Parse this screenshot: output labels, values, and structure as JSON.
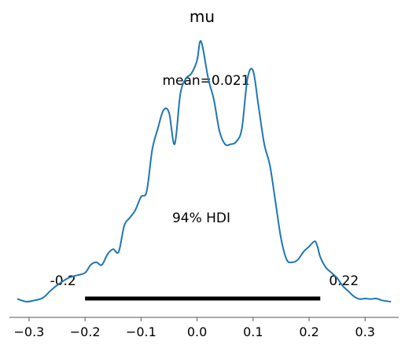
{
  "chart_data": {
    "type": "line",
    "title": "mu",
    "xlabel": "",
    "ylabel": "",
    "xlim": [
      -0.335,
      0.36
    ],
    "ylim": [
      0,
      1
    ],
    "grid": false,
    "x_ticks": [
      -0.3,
      -0.2,
      -0.1,
      0.0,
      0.1,
      0.2,
      0.3
    ],
    "x_tick_labels": [
      "−0.3",
      "−0.2",
      "−0.1",
      "0.0",
      "0.1",
      "0.2",
      "0.3"
    ],
    "series": [
      {
        "color": "#1f77b4",
        "x": [
          -0.32,
          -0.305,
          -0.29,
          -0.275,
          -0.26,
          -0.245,
          -0.23,
          -0.215,
          -0.2,
          -0.19,
          -0.18,
          -0.17,
          -0.16,
          -0.15,
          -0.14,
          -0.13,
          -0.12,
          -0.11,
          -0.1,
          -0.09,
          -0.08,
          -0.07,
          -0.06,
          -0.05,
          -0.04,
          -0.03,
          -0.02,
          -0.01,
          0.0,
          0.005,
          0.01,
          0.02,
          0.03,
          0.04,
          0.05,
          0.06,
          0.07,
          0.08,
          0.09,
          0.1,
          0.11,
          0.12,
          0.13,
          0.14,
          0.15,
          0.16,
          0.17,
          0.18,
          0.19,
          0.2,
          0.21,
          0.215,
          0.22,
          0.23,
          0.24,
          0.25,
          0.26,
          0.27,
          0.28,
          0.29,
          0.3,
          0.31,
          0.32,
          0.33,
          0.345
        ],
        "y": [
          0.01,
          0.0,
          0.005,
          0.015,
          0.045,
          0.07,
          0.09,
          0.1,
          0.11,
          0.14,
          0.15,
          0.14,
          0.18,
          0.2,
          0.19,
          0.29,
          0.32,
          0.35,
          0.4,
          0.42,
          0.58,
          0.66,
          0.73,
          0.72,
          0.6,
          0.79,
          0.85,
          0.87,
          0.92,
          0.99,
          0.97,
          0.85,
          0.77,
          0.65,
          0.6,
          0.6,
          0.61,
          0.66,
          0.85,
          0.88,
          0.74,
          0.6,
          0.52,
          0.38,
          0.24,
          0.16,
          0.15,
          0.16,
          0.19,
          0.21,
          0.23,
          0.21,
          0.17,
          0.13,
          0.11,
          0.09,
          0.06,
          0.04,
          0.02,
          0.01,
          0.012,
          0.01,
          0.012,
          0.005,
          0.0
        ]
      }
    ],
    "annotations": {
      "mean_label": "mean=0.021",
      "hdi_label": "94% HDI",
      "hdi_low": -0.2,
      "hdi_high": 0.22,
      "hdi_low_label": "-0.2",
      "hdi_high_label": "0.22"
    },
    "colors": {
      "line": "#1f77b4",
      "hdi_bar": "#000000",
      "axis": "#555555"
    }
  }
}
